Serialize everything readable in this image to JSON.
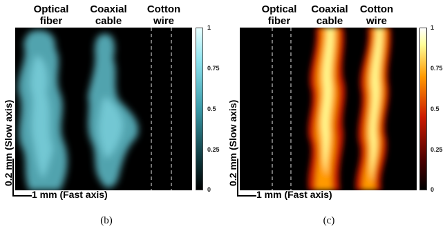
{
  "panel_b": {
    "labels": [
      "Optical\nfiber",
      "Coaxial\ncable",
      "Cotton\nwire"
    ],
    "colorbar_ticks": [
      "1",
      "0.75",
      "0.5",
      "0.25",
      "0"
    ],
    "caption": "(b)",
    "colormap": [
      "#000000",
      "#0f3a40",
      "#3a9aa8",
      "#8fe4f0",
      "#e8ffff"
    ]
  },
  "panel_c": {
    "labels": [
      "Optical\nfiber",
      "Coaxial\ncable",
      "Cotton\nwire"
    ],
    "colorbar_ticks": [
      "1",
      "0.75",
      "0.5",
      "0.25",
      "0"
    ],
    "caption": "(c)",
    "colormap": [
      "#000000",
      "#4a0000",
      "#cc1a00",
      "#ff9900",
      "#ffff99",
      "#ffffff"
    ]
  },
  "scale_bar": {
    "horizontal": "1 mm (Fast axis)",
    "vertical": "0.2 mm (Slow axis)"
  }
}
